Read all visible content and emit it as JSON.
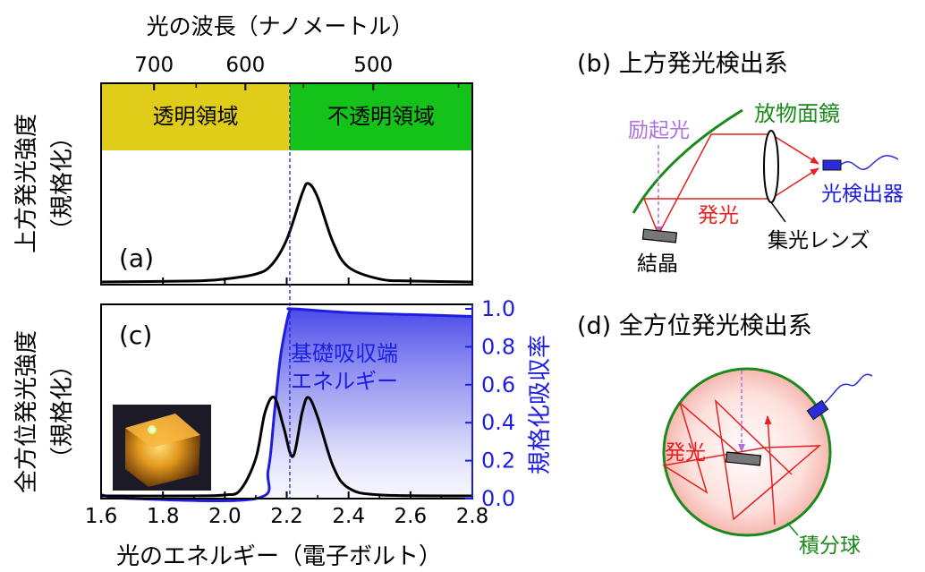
{
  "top_axis": {
    "title": "光の波長（ナノメートル）",
    "ticks": [
      {
        "label": "700",
        "nm": 700
      },
      {
        "label": "600",
        "nm": 600
      },
      {
        "label": "500",
        "nm": 500
      }
    ]
  },
  "bottom_axis": {
    "title": "光のエネルギー（電子ボルト）",
    "xlim": [
      1.6,
      2.8
    ],
    "ticks": [
      "1.6",
      "1.8",
      "2.0",
      "2.2",
      "2.4",
      "2.6",
      "2.8"
    ]
  },
  "right_axis": {
    "title": "規格化吸収率",
    "ylim": [
      0.0,
      1.0
    ],
    "ticks": [
      "0.0",
      "0.2",
      "0.4",
      "0.6",
      "0.8",
      "1.0"
    ]
  },
  "panel_a": {
    "ylabel_line1": "上方発光強度",
    "ylabel_line2": "（規格化）",
    "label": "(a)",
    "region_transparent": "透明領域",
    "region_opaque": "不透明領域",
    "color_transparent": "#e0cd1a",
    "color_opaque": "#15c21a"
  },
  "panel_c": {
    "ylabel_line1": "全方位発光強度",
    "ylabel_line2": "（規格化）",
    "label": "(c)",
    "annotation_line1": "基礎吸収端",
    "annotation_line2": "エネルギー",
    "absorption_color": "#1e1ee0"
  },
  "panel_b": {
    "title": "(b) 上方発光検出系",
    "excitation": "励起光",
    "mirror": "放物面鏡",
    "emission": "発光",
    "detector": "光検出器",
    "lens": "集光レンズ",
    "crystal": "結晶"
  },
  "panel_d": {
    "title": "(d) 全方位発光検出系",
    "emission": "発光",
    "sphere": "積分球"
  },
  "chart_data": [
    {
      "type": "line",
      "panel": "a",
      "xlabel": "光のエネルギー（電子ボルト）",
      "xlim": [
        1.6,
        2.8
      ],
      "series": [
        {
          "x": [
            1.6,
            1.9,
            2.0,
            2.1,
            2.15,
            2.2,
            2.25,
            2.27,
            2.3,
            2.35,
            2.4,
            2.5,
            2.6,
            2.8
          ],
          "y": [
            0.0,
            0.01,
            0.03,
            0.08,
            0.17,
            0.43,
            0.9,
            1.0,
            0.86,
            0.4,
            0.15,
            0.03,
            0.01,
            0.0
          ]
        }
      ],
      "regions": [
        {
          "label": "透明領域",
          "x_from": 1.6,
          "x_to": 2.21
        },
        {
          "label": "不透明領域",
          "x_from": 2.21,
          "x_to": 2.8
        }
      ]
    },
    {
      "type": "line",
      "panel": "c",
      "xlabel": "光のエネルギー（電子ボルト）",
      "xlim": [
        1.6,
        2.8
      ],
      "series": [
        {
          "x": [
            1.6,
            1.9,
            2.0,
            2.05,
            2.1,
            2.13,
            2.16,
            2.19,
            2.22,
            2.25,
            2.27,
            2.3,
            2.35,
            2.4,
            2.5,
            2.8
          ],
          "y": [
            0.0,
            0.0,
            0.01,
            0.06,
            0.38,
            0.85,
            1.0,
            0.7,
            0.4,
            0.85,
            1.0,
            0.8,
            0.3,
            0.08,
            0.01,
            0.0
          ]
        }
      ]
    },
    {
      "type": "area",
      "panel": "c",
      "ylabel": "規格化吸収率",
      "ylim": [
        0.0,
        1.0
      ],
      "series": [
        {
          "x": [
            1.6,
            1.7,
            2.1,
            2.14,
            2.16,
            2.18,
            2.2,
            2.21,
            2.22,
            2.4,
            2.6,
            2.8
          ],
          "y": [
            0.02,
            0.0,
            0.0,
            0.15,
            0.45,
            0.75,
            0.93,
            0.99,
            1.0,
            0.98,
            0.97,
            0.96
          ]
        }
      ]
    }
  ]
}
